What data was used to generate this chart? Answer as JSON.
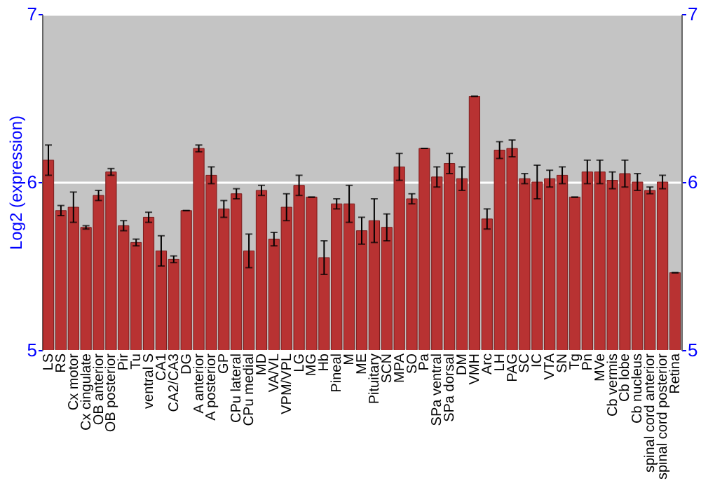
{
  "chart_data": {
    "type": "bar",
    "ylabel": "Log2 (expression)",
    "categories": [
      "LS",
      "RS",
      "Cx motor",
      "Cx cingulate",
      "OB anterior",
      "OB posterior",
      "Pir",
      "Tu",
      "ventral S",
      "CA1",
      "CA2/CA3",
      "DG",
      "A anterior",
      "A posterior",
      "GP",
      "CPu lateral",
      "CPu medial",
      "MD",
      "VA/VL",
      "VPM/VPL",
      "LG",
      "MG",
      "Hb",
      "Pineal",
      "M",
      "ME",
      "Pituitary",
      "SCN",
      "MPA",
      "SO",
      "Pa",
      "SPa ventral",
      "SPa dorsal",
      "DM",
      "VMH",
      "Arc",
      "LH",
      "PAG",
      "SC",
      "IC",
      "VTA",
      "SN",
      "Tg",
      "Pn",
      "MVe",
      "Cb vermis",
      "Cb lobe",
      "Cb nucleus",
      "spinal cord anterior",
      "spinal cord posterior",
      "Retina"
    ],
    "values": [
      6.13,
      5.83,
      5.85,
      5.73,
      5.92,
      6.06,
      5.74,
      5.64,
      5.79,
      5.59,
      5.54,
      5.83,
      6.2,
      6.04,
      5.84,
      5.93,
      5.59,
      5.95,
      5.66,
      5.85,
      5.98,
      5.91,
      5.55,
      5.87,
      5.87,
      5.71,
      5.77,
      5.73,
      6.09,
      5.9,
      6.2,
      6.03,
      6.11,
      6.02,
      6.51,
      5.78,
      6.19,
      6.2,
      6.02,
      6.0,
      6.02,
      6.04,
      5.91,
      6.06,
      6.06,
      6.01,
      6.05,
      6.0,
      5.95,
      6.0,
      5.46
    ],
    "errors": [
      0.09,
      0.03,
      0.09,
      0.01,
      0.03,
      0.02,
      0.03,
      0.02,
      0.03,
      0.09,
      0.02,
      0,
      0.02,
      0.05,
      0.05,
      0.03,
      0.1,
      0.03,
      0.04,
      0.08,
      0.06,
      0,
      0.1,
      0.03,
      0.11,
      0.08,
      0.13,
      0.08,
      0.08,
      0.03,
      0,
      0.06,
      0.06,
      0.07,
      0,
      0.06,
      0.05,
      0.05,
      0.03,
      0.1,
      0.05,
      0.05,
      0,
      0.07,
      0.07,
      0.05,
      0.08,
      0.05,
      0.02,
      0.04,
      0
    ],
    "color": "#b83232",
    "ylim": [
      5,
      7
    ],
    "yticks": [
      5,
      6,
      7
    ],
    "y2lim": [
      5,
      7
    ],
    "y2ticks": [
      5,
      6,
      7
    ],
    "grid": "y"
  }
}
